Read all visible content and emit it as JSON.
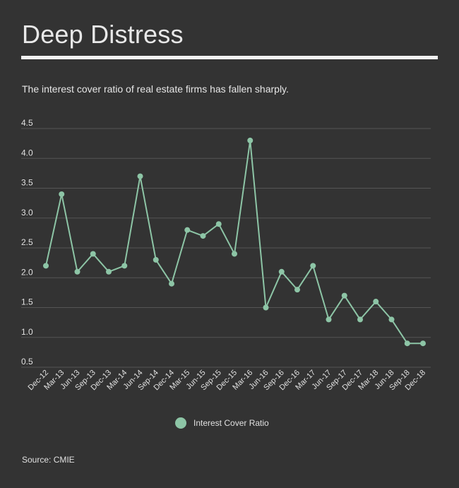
{
  "header": {
    "title": "Deep Distress",
    "subtitle": "The interest cover ratio of real estate firms has fallen sharply."
  },
  "footer": {
    "source": "Source: CMIE"
  },
  "colors": {
    "background": "#333333",
    "line": "#8dc5a6",
    "grid": "#555555",
    "text": "#e0e0e0"
  },
  "chart_data": {
    "type": "line",
    "title": "",
    "xlabel": "",
    "ylabel": "",
    "ylim": [
      0.5,
      4.5
    ],
    "yticks": [
      "0.5",
      "1.0",
      "1.5",
      "2.0",
      "2.5",
      "3.0",
      "3.5",
      "4.0",
      "4.5"
    ],
    "grid": true,
    "legend_position": "bottom",
    "categories": [
      "Dec-12",
      "Mar-13",
      "Jun-13",
      "Sep-13",
      "Dec-13",
      "Mar-14",
      "Jun-14",
      "Sep-14",
      "Dec-14",
      "Mar-15",
      "Jun-15",
      "Sep-15",
      "Dec-15",
      "Mar-16",
      "Jun-16",
      "Sep-16",
      "Dec-16",
      "Mar-17",
      "Jun-17",
      "Sep-17",
      "Dec-17",
      "Mar-18",
      "Jun-18",
      "Sep-18",
      "Dec-18"
    ],
    "series": [
      {
        "name": "Interest Cover Ratio",
        "values": [
          2.2,
          3.4,
          2.1,
          2.4,
          2.1,
          2.2,
          3.7,
          2.3,
          1.9,
          2.8,
          2.7,
          2.9,
          2.4,
          4.3,
          1.5,
          2.1,
          1.8,
          2.2,
          1.3,
          1.7,
          1.3,
          1.6,
          1.3,
          0.9,
          0.9
        ]
      }
    ]
  }
}
